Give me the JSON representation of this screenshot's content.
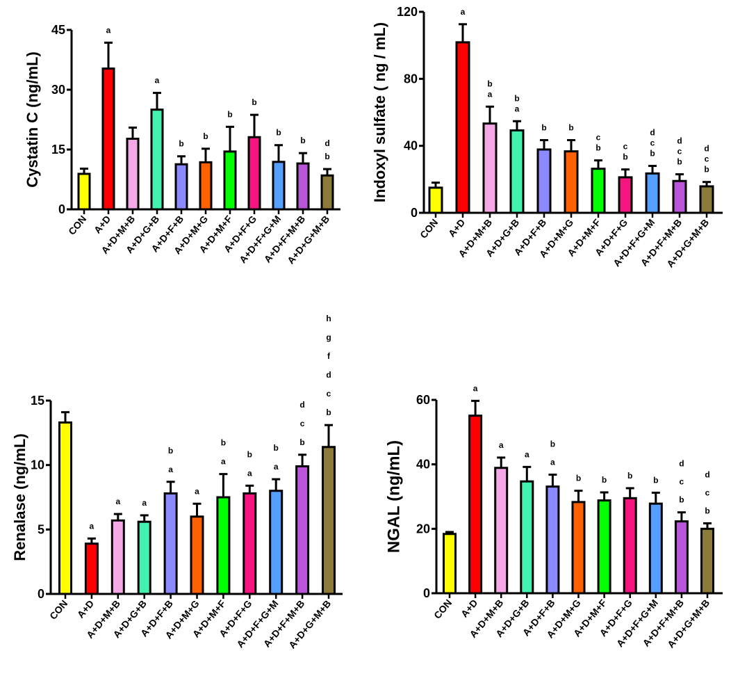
{
  "chart_data": [
    {
      "type": "bar",
      "title": "",
      "ylabel": "Cystatin C (ng/mL)",
      "xlabel": "",
      "ylim": [
        0,
        45
      ],
      "yticks": [
        "0",
        "15",
        "30",
        "45"
      ],
      "categories": [
        "CON",
        "A+D",
        "A+D+M+B",
        "A+D+G+B",
        "A+D+F+B",
        "A+D+M+G",
        "A+D+M+F",
        "A+D+F+G",
        "A+D+F+G+M",
        "A+D+F+M+B",
        "A+D+G+M+B"
      ],
      "values": [
        8.9,
        35.3,
        17.7,
        25.0,
        11.3,
        11.8,
        14.5,
        18.1,
        11.9,
        11.5,
        8.5
      ],
      "error_upper": [
        10.2,
        41.8,
        20.5,
        29.2,
        13.3,
        15.2,
        20.7,
        23.7,
        16.1,
        14.1,
        10.1
      ],
      "letters": [
        [],
        [
          "a"
        ],
        [],
        [
          "a"
        ],
        [
          "b"
        ],
        [
          "b"
        ],
        [
          "b"
        ],
        [
          "b"
        ],
        [
          "b"
        ],
        [
          "b"
        ],
        [
          "b",
          "d"
        ]
      ]
    },
    {
      "type": "bar",
      "title": "",
      "ylabel": "Indoxyl sulfate ( ng / mL)",
      "xlabel": "",
      "ylim": [
        0,
        120
      ],
      "yticks": [
        "0",
        "40",
        "80",
        "120"
      ],
      "categories": [
        "CON",
        "A+D",
        "A+D+M+B",
        "A+D+G+B",
        "A+D+F+B",
        "A+D+M+G",
        "A+D+M+F",
        "A+D+F+G",
        "A+D+F+G+M",
        "A+D+F+M+B",
        "A+D+G+M+B"
      ],
      "values": [
        15.0,
        101.8,
        53.3,
        49.2,
        37.8,
        36.7,
        26.3,
        21.2,
        23.5,
        19.0,
        15.8
      ],
      "error_upper": [
        18.0,
        112.6,
        63.4,
        54.7,
        43.4,
        43.4,
        31.3,
        25.9,
        28.0,
        23.0,
        18.4
      ],
      "letters": [
        [],
        [
          "a"
        ],
        [
          "a",
          "b"
        ],
        [
          "a",
          "b"
        ],
        [
          "b"
        ],
        [
          "b"
        ],
        [
          "b",
          "c"
        ],
        [
          "b",
          "c"
        ],
        [
          "b",
          "c",
          "d"
        ],
        [
          "b",
          "c",
          "d"
        ],
        [
          "b",
          "c",
          "d"
        ]
      ]
    },
    {
      "type": "bar",
      "title": "",
      "ylabel": "Renalase (ng/mL)",
      "xlabel": "",
      "ylim": [
        0,
        15
      ],
      "yticks": [
        "0",
        "5",
        "10",
        "15"
      ],
      "categories": [
        "CON",
        "A+D",
        "A+D+M+B",
        "A+D+G+B",
        "A+D+F+B",
        "A+D+M+G",
        "A+D+M+F",
        "A+D+F+G",
        "A+D+F+G+M",
        "A+D+F+M+B",
        "A+D+G+M+B"
      ],
      "values": [
        13.3,
        3.9,
        5.7,
        5.6,
        7.8,
        6.0,
        7.5,
        7.8,
        8.0,
        9.9,
        11.4
      ],
      "error_upper": [
        14.1,
        4.3,
        6.2,
        6.1,
        8.7,
        7.0,
        9.3,
        8.4,
        8.9,
        10.8,
        13.1
      ],
      "letters": [
        [],
        [
          "a"
        ],
        [
          "a"
        ],
        [
          "a"
        ],
        [
          "a",
          "b"
        ],
        [
          "a"
        ],
        [
          "a",
          "b"
        ],
        [
          "a",
          "b"
        ],
        [
          "a",
          "b"
        ],
        [
          "b",
          "c",
          "d"
        ],
        [
          "b",
          "c",
          "d",
          "f",
          "g",
          "h"
        ]
      ]
    },
    {
      "type": "bar",
      "title": "",
      "ylabel": "NGAL (ng/mL)",
      "xlabel": "",
      "ylim": [
        0,
        60
      ],
      "yticks": [
        "0",
        "20",
        "40",
        "60"
      ],
      "categories": [
        "CON",
        "A+D",
        "A+D+M+B",
        "A+D+G+B",
        "A+D+F+B",
        "A+D+M+G",
        "A+D+M+F",
        "A+D+F+G",
        "A+D+F+G+M",
        "A+D+F+M+B",
        "A+D+G+M+B"
      ],
      "values": [
        18.4,
        55.1,
        38.9,
        34.7,
        33.1,
        28.3,
        28.8,
        29.5,
        27.8,
        22.3,
        20.0
      ],
      "error_upper": [
        19.0,
        59.7,
        42.1,
        39.2,
        36.8,
        31.8,
        31.3,
        32.6,
        31.2,
        25.1,
        21.7
      ],
      "letters": [
        [],
        [
          "a"
        ],
        [
          "a"
        ],
        [
          "a"
        ],
        [
          "a",
          "b"
        ],
        [
          "b"
        ],
        [
          "b"
        ],
        [
          "b"
        ],
        [
          "b"
        ],
        [
          "b",
          "c",
          "d"
        ],
        [
          "b",
          "c",
          "d"
        ]
      ]
    }
  ],
  "colors": [
    "#ffff00",
    "#ff0000",
    "#f5a8e6",
    "#44f2b0",
    "#8b8bff",
    "#ff6000",
    "#00ff00",
    "#f5157f",
    "#55a0ff",
    "#b855d8",
    "#8b7a3a"
  ]
}
